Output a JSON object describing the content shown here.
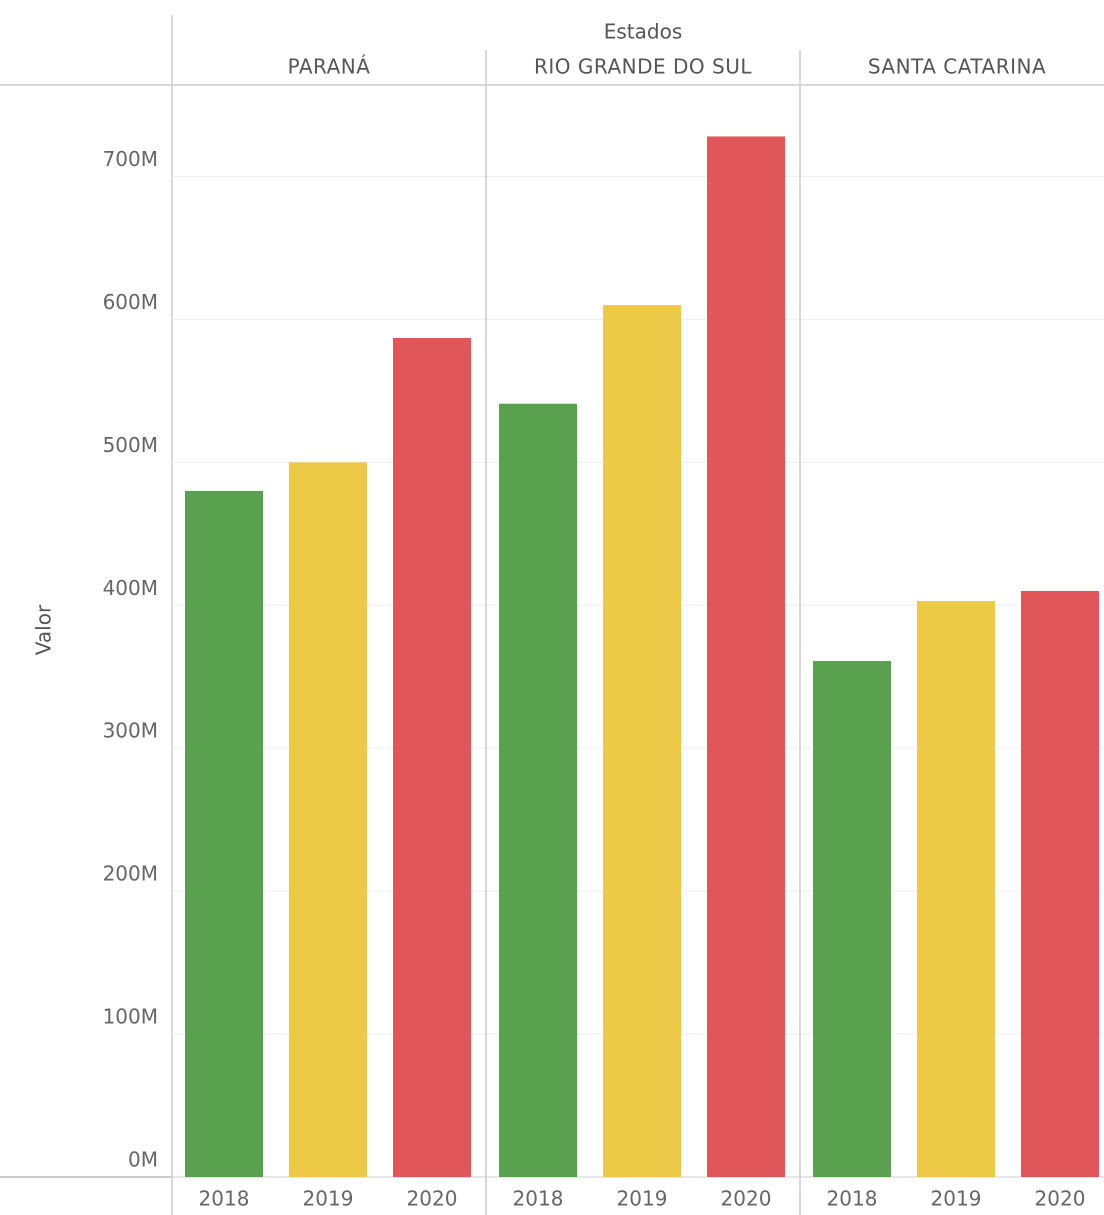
{
  "chart_data": {
    "type": "bar",
    "title": "Estados",
    "y_label": "Valor",
    "categories": [
      "PARANÁ",
      "RIO GRANDE DO SUL",
      "SANTA CATARINA"
    ],
    "series": [
      {
        "name": "2018",
        "color": "#59a14f",
        "values": [
          480000000,
          541000000,
          361000000
        ]
      },
      {
        "name": "2019",
        "color": "#edc948",
        "values": [
          500000000,
          610000000,
          403000000
        ]
      },
      {
        "name": "2020",
        "color": "#e15759",
        "values": [
          587000000,
          728000000,
          410000000
        ]
      }
    ],
    "ylim": [
      0,
      764000000
    ],
    "yticks": [
      {
        "value": 0,
        "label": "0M"
      },
      {
        "value": 100000000,
        "label": "100M"
      },
      {
        "value": 200000000,
        "label": "200M"
      },
      {
        "value": 300000000,
        "label": "300M"
      },
      {
        "value": 400000000,
        "label": "400M"
      },
      {
        "value": 500000000,
        "label": "500M"
      },
      {
        "value": 600000000,
        "label": "600M"
      },
      {
        "value": 700000000,
        "label": "700M"
      }
    ],
    "grid": true
  }
}
